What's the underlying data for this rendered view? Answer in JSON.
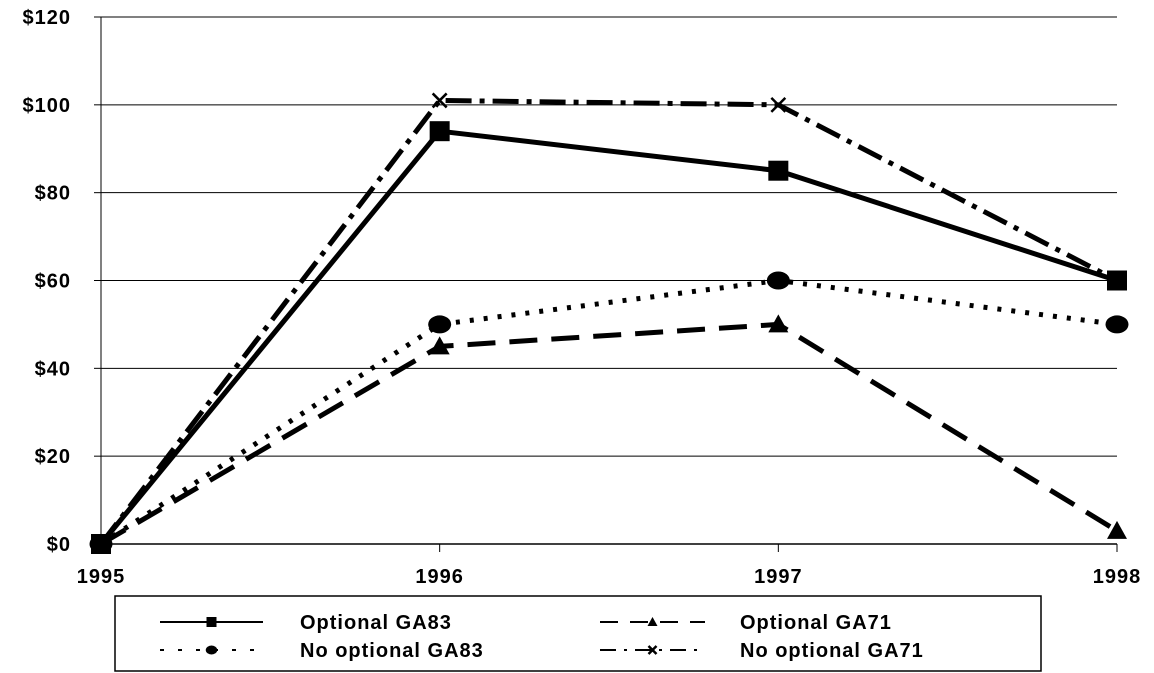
{
  "chart_data": {
    "type": "line",
    "x": [
      "1995",
      "1996",
      "1997",
      "1998"
    ],
    "ylim": [
      0,
      120
    ],
    "y_ticks": [
      "$0",
      "$20",
      "$40",
      "$60",
      "$80",
      "$100",
      "$120"
    ],
    "y_tick_values": [
      0,
      20,
      40,
      60,
      80,
      100,
      120
    ],
    "grid": true,
    "legend_position": "bottom",
    "series": [
      {
        "name": "Optional GA83",
        "values": [
          0,
          94,
          85,
          60
        ],
        "marker": "square",
        "line_style": "solid"
      },
      {
        "name": "Optional GA71",
        "values": [
          0,
          45,
          50,
          3
        ],
        "marker": "triangle",
        "line_style": "dashed"
      },
      {
        "name": "No optional GA83",
        "values": [
          0,
          50,
          60,
          50
        ],
        "marker": "circle",
        "line_style": "dotted"
      },
      {
        "name": "No optional GA71",
        "values": [
          0,
          101,
          100,
          60
        ],
        "marker": "x",
        "line_style": "dash-dot"
      }
    ],
    "colors": {
      "line": "#000000",
      "grid": "#000000",
      "background": "#ffffff"
    }
  }
}
